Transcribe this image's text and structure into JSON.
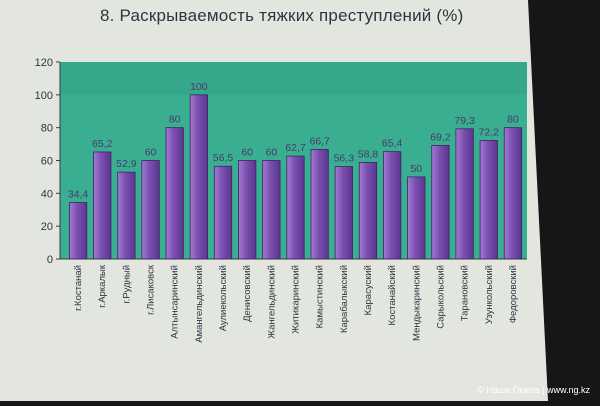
{
  "slide": {
    "title": "8. Раскрываемость тяжких преступлений (%)",
    "watermark": "© Наша Газета | www.ng.kz"
  },
  "chart_data": {
    "type": "bar",
    "title": "8. Раскрываемость тяжких преступлений (%)",
    "xlabel": "",
    "ylabel": "",
    "ylim": [
      0,
      120
    ],
    "yticks": [
      0,
      20,
      40,
      60,
      80,
      100,
      120
    ],
    "grid": false,
    "legend": "none",
    "categories": [
      "г.Костанай",
      "г.Аркалык",
      "г.Рудный",
      "г.Лисаковск",
      "Алтынсаринский",
      "Амангельдинский",
      "Аулиекольский",
      "Денисовский",
      "Жангельдинский",
      "Житикаринский",
      "Камыстинский",
      "Карабалыкский",
      "Карасуский",
      "Костанайский",
      "Мендыкаринский",
      "Сарыкольский",
      "Тарановский",
      "Узункольский",
      "Федоровский"
    ],
    "values": [
      34.4,
      65.2,
      52.9,
      60,
      80,
      100,
      56.5,
      60,
      60,
      62.7,
      66.7,
      56.3,
      58.8,
      65.4,
      50,
      69.2,
      79.3,
      72.2,
      80
    ],
    "labels": [
      "34,4",
      "65,2",
      "52,9",
      "60",
      "80",
      "100",
      "56,5",
      "60",
      "60",
      "62,7",
      "66,7",
      "56,3",
      "58,8",
      "65,4",
      "50",
      "69,2",
      "79,3",
      "72,2",
      "80"
    ],
    "colors": {
      "bar": "#7a4fb0",
      "bar_light": "#a47ad3",
      "plot_bg": "#35a88c",
      "slide_bg": "#e9ece4",
      "label": "#4a3a6a"
    }
  }
}
